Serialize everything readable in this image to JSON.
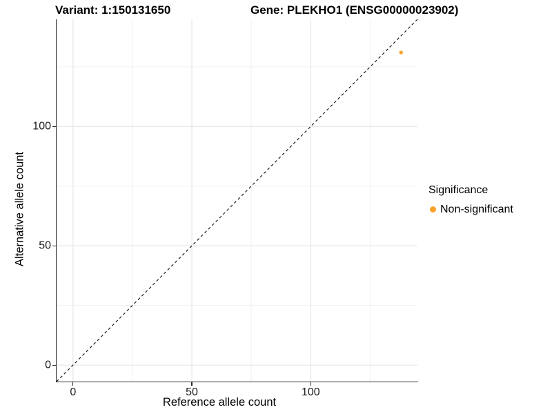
{
  "title": {
    "variant": "Variant: 1:150131650",
    "gene": "Gene: PLEKHO1 (ENSG00000023902)"
  },
  "axes": {
    "x": {
      "title": "Reference allele count",
      "ticks": [
        "0",
        "50",
        "100"
      ]
    },
    "y": {
      "title": "Alternative allele count",
      "ticks": [
        "0",
        "50",
        "100"
      ]
    }
  },
  "legend": {
    "title": "Significance",
    "items": [
      {
        "label": "Non-significant",
        "marker": "dot-icon",
        "color": "#F9A22B"
      }
    ]
  },
  "colors": {
    "point_non_significant": "#F9A22B",
    "axis_line": "#2b2b2b",
    "grid_major": "#e4e4e4",
    "grid_minor": "#f1f1f1",
    "reference_line": "#1a1a1a",
    "background": "#ffffff"
  },
  "chart_data": {
    "type": "scatter",
    "title": "Variant: 1:150131650   |   Gene: PLEKHO1 (ENSG00000023902)",
    "xlabel": "Reference allele count",
    "ylabel": "Alternative allele count",
    "xlim": [
      -6.9,
      144.9
    ],
    "ylim": [
      -6.9,
      144.9
    ],
    "x_major_ticks": [
      0,
      50,
      100
    ],
    "y_major_ticks": [
      0,
      50,
      100
    ],
    "x_minor_ticks": [
      25,
      75,
      125
    ],
    "y_minor_ticks": [
      25,
      75,
      125
    ],
    "grid": true,
    "legend_position": "right",
    "series": [
      {
        "name": "Non-significant",
        "color": "#F9A22B",
        "marker": "circle",
        "points": [
          {
            "x": 138,
            "y": 131
          }
        ]
      }
    ],
    "reference_line": {
      "kind": "abline",
      "slope": 1,
      "intercept": 0,
      "style": "dashed"
    }
  }
}
